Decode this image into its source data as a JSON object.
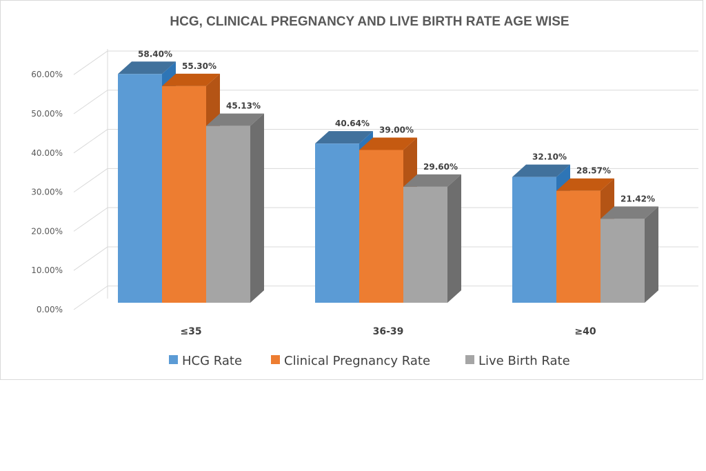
{
  "chart_data": {
    "type": "bar",
    "title": "HCG, CLINICAL PREGNANCY AND LIVE BIRTH RATE AGE WISE",
    "categories": [
      "≤35",
      "36-39",
      "≥40"
    ],
    "series": [
      {
        "name": "HCG Rate",
        "values": [
          58.4,
          40.64,
          32.1
        ],
        "labels": [
          "58.40%",
          "40.64%",
          "32.10%"
        ],
        "color": "#5b9bd5",
        "top": "#41719c",
        "side": "#2e75b6"
      },
      {
        "name": "Clinical Pregnancy Rate",
        "values": [
          55.3,
          39.0,
          28.57
        ],
        "labels": [
          "55.30%",
          "39.00%",
          "28.57%"
        ],
        "color": "#ed7d31",
        "top": "#c55a11",
        "side": "#b45415"
      },
      {
        "name": "Live Birth Rate",
        "values": [
          45.13,
          29.6,
          21.42
        ],
        "labels": [
          "45.13%",
          "29.60%",
          "21.42%"
        ],
        "color": "#a5a5a5",
        "top": "#7f7f7f",
        "side": "#6e6e6e"
      }
    ],
    "yticks": [
      "0.00%",
      "10.00%",
      "20.00%",
      "30.00%",
      "40.00%",
      "50.00%",
      "60.00%"
    ],
    "ylim": [
      0,
      60
    ],
    "xlabel": "",
    "ylabel": "",
    "legend_position": "bottom",
    "grid": true
  }
}
